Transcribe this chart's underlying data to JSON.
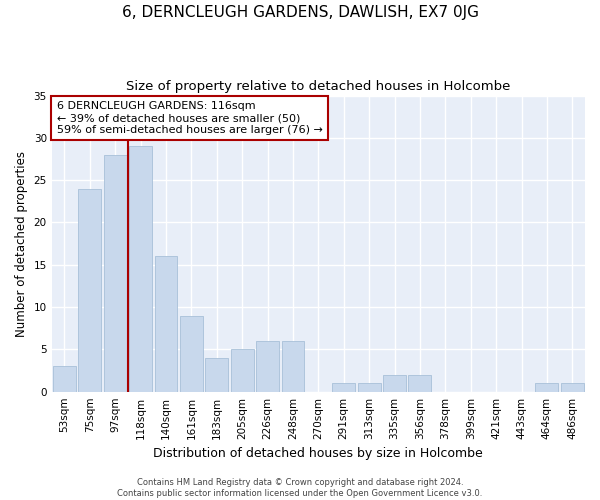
{
  "title": "6, DERNCLEUGH GARDENS, DAWLISH, EX7 0JG",
  "subtitle": "Size of property relative to detached houses in Holcombe",
  "xlabel": "Distribution of detached houses by size in Holcombe",
  "ylabel": "Number of detached properties",
  "categories": [
    "53sqm",
    "75sqm",
    "97sqm",
    "118sqm",
    "140sqm",
    "161sqm",
    "183sqm",
    "205sqm",
    "226sqm",
    "248sqm",
    "270sqm",
    "291sqm",
    "313sqm",
    "335sqm",
    "356sqm",
    "378sqm",
    "399sqm",
    "421sqm",
    "443sqm",
    "464sqm",
    "486sqm"
  ],
  "values": [
    3,
    24,
    28,
    29,
    16,
    9,
    4,
    5,
    6,
    6,
    0,
    1,
    1,
    2,
    2,
    0,
    0,
    0,
    0,
    1,
    1
  ],
  "bar_color": "#c8d8ec",
  "bar_edge_color": "#a8c0d8",
  "bg_color": "#e8eef8",
  "grid_color": "#ffffff",
  "vline_x_index": 2.5,
  "vline_color": "#aa0000",
  "annotation_text": "6 DERNCLEUGH GARDENS: 116sqm\n← 39% of detached houses are smaller (50)\n59% of semi-detached houses are larger (76) →",
  "annotation_box_edgecolor": "#aa0000",
  "ylim": [
    0,
    35
  ],
  "yticks": [
    0,
    5,
    10,
    15,
    20,
    25,
    30,
    35
  ],
  "footer": "Contains HM Land Registry data © Crown copyright and database right 2024.\nContains public sector information licensed under the Open Government Licence v3.0.",
  "title_fontsize": 11,
  "subtitle_fontsize": 9.5,
  "xlabel_fontsize": 9,
  "ylabel_fontsize": 8.5,
  "tick_fontsize": 7.5,
  "annotation_fontsize": 8,
  "footer_fontsize": 6
}
